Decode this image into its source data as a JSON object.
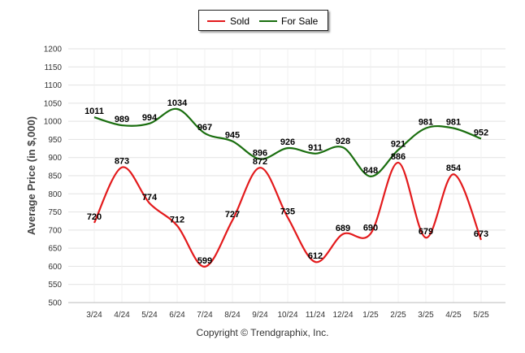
{
  "chart_data": {
    "type": "line",
    "categories": [
      "3/24",
      "4/24",
      "5/24",
      "6/24",
      "7/24",
      "8/24",
      "9/24",
      "10/24",
      "11/24",
      "12/24",
      "1/25",
      "2/25",
      "3/25",
      "4/25",
      "5/25"
    ],
    "series": [
      {
        "name": "Sold",
        "color": "#e31a1c",
        "values": [
          720,
          873,
          774,
          712,
          599,
          727,
          872,
          735,
          612,
          689,
          690,
          886,
          679,
          854,
          673
        ]
      },
      {
        "name": "For Sale",
        "color": "#1a6e0f",
        "values": [
          1011,
          989,
          994,
          1034,
          967,
          945,
          896,
          926,
          911,
          928,
          848,
          921,
          981,
          981,
          952
        ]
      }
    ],
    "ylabel": "Average Price (in $,000)",
    "ylim": [
      500,
      1200
    ],
    "yticks": [
      500,
      550,
      600,
      650,
      700,
      750,
      800,
      850,
      900,
      950,
      1000,
      1050,
      1100,
      1150,
      1200
    ],
    "grid": true,
    "legend_position": "top-center"
  },
  "footer": {
    "copyright": "Copyright © Trendgraphix, Inc."
  }
}
